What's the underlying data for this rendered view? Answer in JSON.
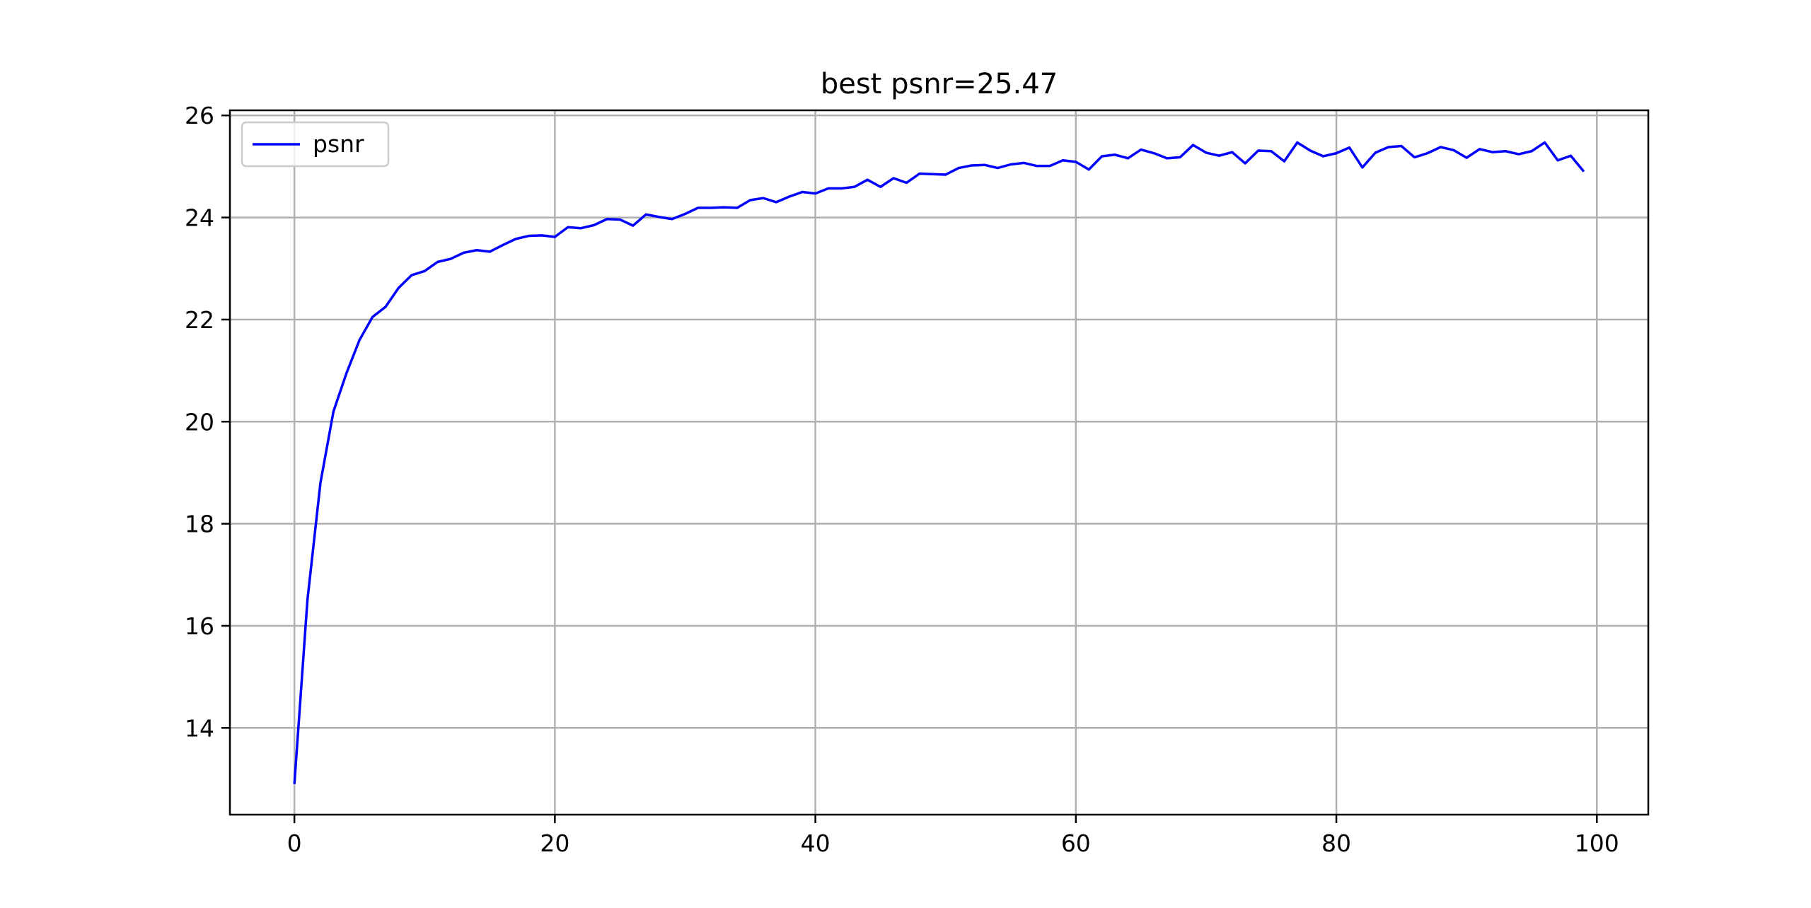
{
  "chart_data": {
    "type": "line",
    "title": "best psnr=25.47",
    "xlabel": "",
    "ylabel": "",
    "xlim": [
      -4.95,
      103.95
    ],
    "ylim": [
      12.3,
      26.1
    ],
    "xticks": [
      0,
      20,
      40,
      60,
      80,
      100
    ],
    "yticks": [
      14,
      16,
      18,
      20,
      22,
      24,
      26
    ],
    "grid": true,
    "legend": {
      "placement": "top-left"
    },
    "series": [
      {
        "name": "psnr",
        "color": "#0000ff",
        "x": [
          0,
          1,
          2,
          3,
          4,
          5,
          6,
          7,
          8,
          9,
          10,
          11,
          12,
          13,
          14,
          15,
          16,
          17,
          18,
          19,
          20,
          21,
          22,
          23,
          24,
          25,
          26,
          27,
          28,
          29,
          30,
          31,
          32,
          33,
          34,
          35,
          36,
          37,
          38,
          39,
          40,
          41,
          42,
          43,
          44,
          45,
          46,
          47,
          48,
          49,
          50,
          51,
          52,
          53,
          54,
          55,
          56,
          57,
          58,
          59,
          60,
          61,
          62,
          63,
          64,
          65,
          66,
          67,
          68,
          69,
          70,
          71,
          72,
          73,
          74,
          75,
          76,
          77,
          78,
          79,
          80,
          81,
          82,
          83,
          84,
          85,
          86,
          87,
          88,
          89,
          90,
          91,
          92,
          93,
          94,
          95,
          96,
          97,
          98,
          99
        ],
        "values": [
          12.9,
          16.5,
          18.8,
          20.2,
          20.95,
          21.6,
          22.05,
          22.25,
          22.62,
          22.87,
          22.95,
          23.13,
          23.19,
          23.31,
          23.36,
          23.33,
          23.46,
          23.58,
          23.64,
          23.65,
          23.62,
          23.81,
          23.79,
          23.85,
          23.97,
          23.96,
          23.84,
          24.06,
          24.01,
          23.97,
          24.07,
          24.19,
          24.19,
          24.2,
          24.19,
          24.34,
          24.38,
          24.3,
          24.41,
          24.5,
          24.47,
          24.57,
          24.57,
          24.6,
          24.74,
          24.6,
          24.77,
          24.68,
          24.86,
          24.85,
          24.84,
          24.97,
          25.02,
          25.03,
          24.97,
          25.04,
          25.07,
          25.01,
          25.01,
          25.12,
          25.09,
          24.94,
          25.2,
          25.23,
          25.16,
          25.33,
          25.26,
          25.16,
          25.18,
          25.42,
          25.27,
          25.21,
          25.28,
          25.06,
          25.31,
          25.3,
          25.1,
          25.47,
          25.31,
          25.2,
          25.26,
          25.37,
          24.98,
          25.27,
          25.38,
          25.4,
          25.18,
          25.26,
          25.38,
          25.32,
          25.17,
          25.34,
          25.28,
          25.3,
          25.24,
          25.3,
          25.47,
          25.12,
          25.21,
          24.9
        ]
      }
    ]
  }
}
